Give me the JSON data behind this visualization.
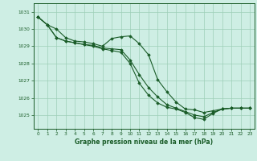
{
  "title": "Graphe pression niveau de la mer (hPa)",
  "bg_color": "#ceeee4",
  "grid_color": "#9ecfb8",
  "line_color": "#1a5c28",
  "marker_color": "#1a5c28",
  "ylim": [
    1024.2,
    1031.5
  ],
  "xlim": [
    -0.5,
    23.5
  ],
  "yticks": [
    1025,
    1026,
    1027,
    1028,
    1029,
    1030,
    1031
  ],
  "xticks": [
    0,
    1,
    2,
    3,
    4,
    5,
    6,
    7,
    8,
    9,
    10,
    11,
    12,
    13,
    14,
    15,
    16,
    17,
    18,
    19,
    20,
    21,
    22,
    23
  ],
  "series1": [
    1030.7,
    1030.25,
    1030.0,
    1029.5,
    1029.3,
    1029.25,
    1029.15,
    1029.0,
    1029.45,
    1029.55,
    1029.6,
    1029.15,
    1028.5,
    1027.05,
    1026.35,
    1025.75,
    1025.35,
    1025.3,
    1025.15,
    1025.25,
    1025.35,
    1025.4,
    1025.4,
    1025.4
  ],
  "series2": [
    1030.7,
    1030.25,
    1029.5,
    1029.3,
    1029.2,
    1029.1,
    1029.05,
    1028.9,
    1028.85,
    1028.8,
    1028.2,
    1027.35,
    1026.6,
    1026.05,
    1025.6,
    1025.4,
    1025.2,
    1025.0,
    1024.9,
    1025.15,
    1025.35,
    1025.4,
    1025.4,
    1025.4
  ],
  "series3": [
    1030.7,
    1030.25,
    1029.5,
    1029.3,
    1029.2,
    1029.1,
    1029.0,
    1028.85,
    1028.75,
    1028.65,
    1028.0,
    1026.85,
    1026.15,
    1025.7,
    1025.45,
    1025.35,
    1025.15,
    1024.85,
    1024.75,
    1025.1,
    1025.35,
    1025.4,
    1025.4,
    1025.4
  ]
}
